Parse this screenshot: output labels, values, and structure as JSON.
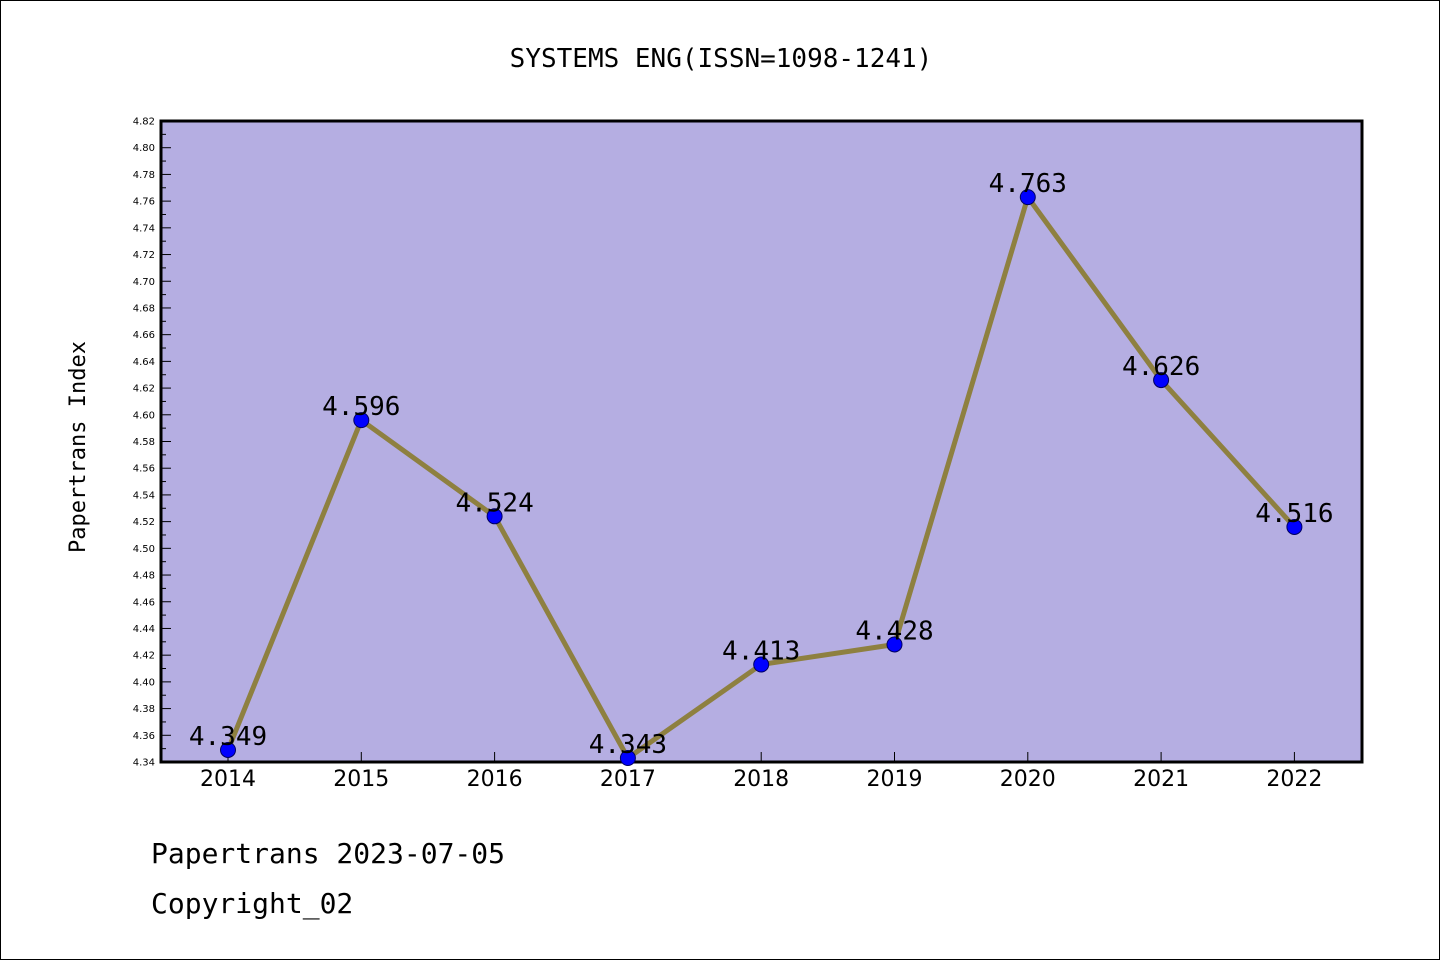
{
  "chart_data": {
    "type": "line",
    "title": "SYSTEMS ENG(ISSN=1098-1241)",
    "xlabel": "",
    "ylabel": "Papertrans Index",
    "categories": [
      "2014",
      "2015",
      "2016",
      "2017",
      "2018",
      "2019",
      "2020",
      "2021",
      "2022"
    ],
    "series": [
      {
        "values": [
          4.349,
          4.596,
          4.524,
          4.343,
          4.413,
          4.428,
          4.763,
          4.626,
          4.516
        ],
        "labels": [
          "4.349",
          "4.596",
          "4.524",
          "4.343",
          "4.413",
          "4.428",
          "4.763",
          "4.626",
          "4.516"
        ]
      }
    ],
    "ylim": [
      4.34,
      4.82
    ],
    "yticks": [
      "4.34",
      "4.36",
      "4.38",
      "4.40",
      "4.42",
      "4.44",
      "4.46",
      "4.48",
      "4.50",
      "4.52",
      "4.54",
      "4.56",
      "4.58",
      "4.60",
      "4.62",
      "4.64",
      "4.66",
      "4.68",
      "4.70",
      "4.72",
      "4.74",
      "4.76",
      "4.78",
      "4.80",
      "4.82"
    ],
    "grid": false,
    "legend": "none",
    "colors": {
      "plot_background": "#b5aee2",
      "line": "#8e8040",
      "marker": "#0000ff",
      "axes": "#000000"
    }
  },
  "footer": {
    "date_line": "Papertrans 2023-07-05",
    "copyright": "Copyright_02"
  }
}
